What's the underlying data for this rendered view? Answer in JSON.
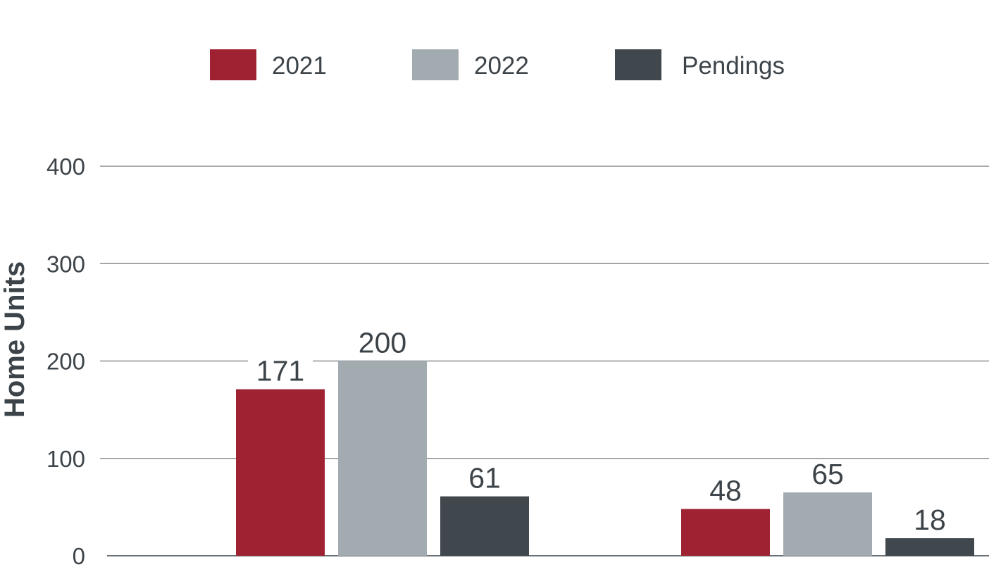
{
  "chart_data": {
    "type": "bar",
    "ylabel": "Home Units",
    "ylim": [
      0,
      400
    ],
    "yticks": [
      0,
      100,
      200,
      300,
      400
    ],
    "grid": true,
    "legend_position": "top-center",
    "categories": [
      "",
      ""
    ],
    "series": [
      {
        "name": "2021",
        "color": "#9f2232",
        "values": [
          171,
          48
        ]
      },
      {
        "name": "2022",
        "color": "#a2abb0",
        "values": [
          200,
          65
        ]
      },
      {
        "name": "Pendings",
        "color": "#40474d",
        "values": [
          61,
          18
        ]
      }
    ]
  }
}
